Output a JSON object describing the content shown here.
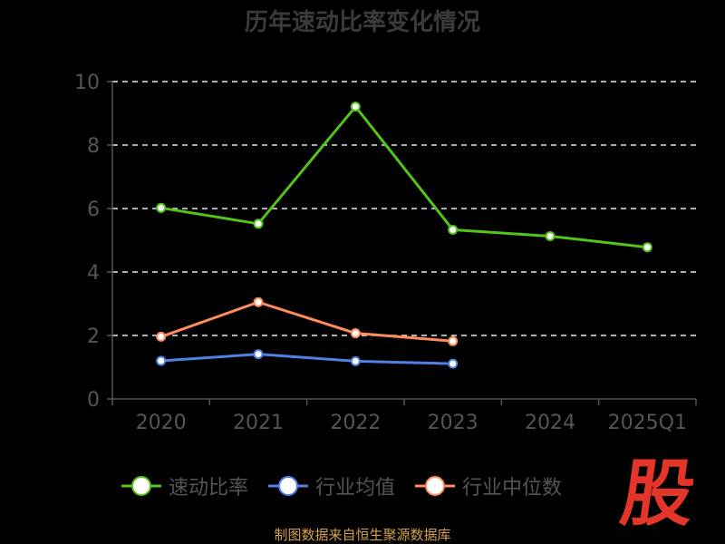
{
  "title": "历年速动比率变化情况",
  "source": "制图数据来自恒生聚源数据库",
  "logo_text": "股",
  "chart_data": {
    "type": "line",
    "title": "历年速动比率变化情况",
    "categories": [
      "2020",
      "2021",
      "2022",
      "2023",
      "2024",
      "2025Q1"
    ],
    "ylim": [
      0,
      10
    ],
    "yticks": [
      0,
      2,
      4,
      6,
      8,
      10
    ],
    "grid": true,
    "legend_position": "bottom",
    "series": [
      {
        "name": "速动比率",
        "color": "#52c41a",
        "values": [
          6.02,
          5.52,
          9.21,
          5.33,
          5.13,
          4.78
        ]
      },
      {
        "name": "行业均值",
        "color": "#4e82e5",
        "values": [
          1.2,
          1.41,
          1.19,
          1.11,
          null,
          null
        ]
      },
      {
        "name": "行业中位数",
        "color": "#ff8c5a",
        "values": [
          1.96,
          3.05,
          2.07,
          1.82,
          null,
          null
        ]
      }
    ]
  }
}
